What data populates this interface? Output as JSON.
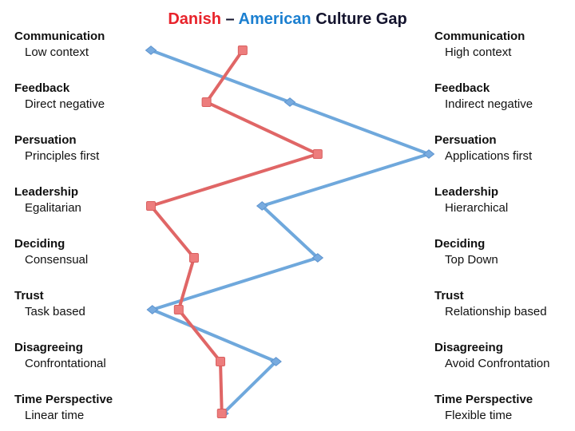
{
  "title": {
    "danish": "Danish",
    "separator": " – ",
    "american": "American",
    "rest": " Culture Gap"
  },
  "colors": {
    "danish_title": "#E8232B",
    "american_title": "#1B7FD0",
    "title_text": "#14142E",
    "label_text": "#111111",
    "danish_line": "#E06666",
    "danish_marker_fill": "#ED7D7D",
    "danish_marker_stroke": "#D95F5F",
    "american_line": "#6FA8DC",
    "american_marker_fill": "#78ABDF",
    "american_marker_stroke": "#5E94CF"
  },
  "rows": [
    {
      "category": "Communication",
      "left": "Low context",
      "right": "High context"
    },
    {
      "category": "Feedback",
      "left": "Direct negative",
      "right": "Indirect negative"
    },
    {
      "category": "Persuation",
      "left": "Principles first",
      "right": "Applications first"
    },
    {
      "category": "Leadership",
      "left": "Egalitarian",
      "right": "Hierarchical"
    },
    {
      "category": "Deciding",
      "left": "Consensual",
      "right": "Top Down"
    },
    {
      "category": "Trust",
      "left": "Task based",
      "right": "Relationship based"
    },
    {
      "category": "Disagreeing",
      "left": "Confrontational",
      "right": "Avoid Confrontation"
    },
    {
      "category": "Time Perspective",
      "left": "Linear time",
      "right": "Flexible time"
    }
  ],
  "chart_data": {
    "type": "line",
    "title": "Danish – American Culture Gap",
    "orientation": "horizontal scale per category row, 8 rows",
    "categories": [
      "Communication",
      "Feedback",
      "Persuation",
      "Leadership",
      "Deciding",
      "Trust",
      "Disagreeing",
      "Time Perspective"
    ],
    "left_anchor_labels": [
      "Low context",
      "Direct negative",
      "Principles first",
      "Egalitarian",
      "Consensual",
      "Task based",
      "Confrontational",
      "Linear time"
    ],
    "right_anchor_labels": [
      "High context",
      "Indirect negative",
      "Applications first",
      "Hierarchical",
      "Top Down",
      "Relationship based",
      "Avoid Confrontation",
      "Flexible time"
    ],
    "xlim": [
      0,
      1
    ],
    "grid": false,
    "legend_position": "in-title",
    "series": [
      {
        "name": "Danish",
        "color": "#E06666",
        "marker": "square",
        "values": [
          0.33,
          0.2,
          0.6,
          0.0,
          0.155,
          0.1,
          0.25,
          0.255
        ]
      },
      {
        "name": "American",
        "color": "#6FA8DC",
        "marker": "diamond",
        "values": [
          0.0,
          0.5,
          1.0,
          0.4,
          0.6,
          0.005,
          0.45,
          0.26
        ]
      }
    ]
  }
}
